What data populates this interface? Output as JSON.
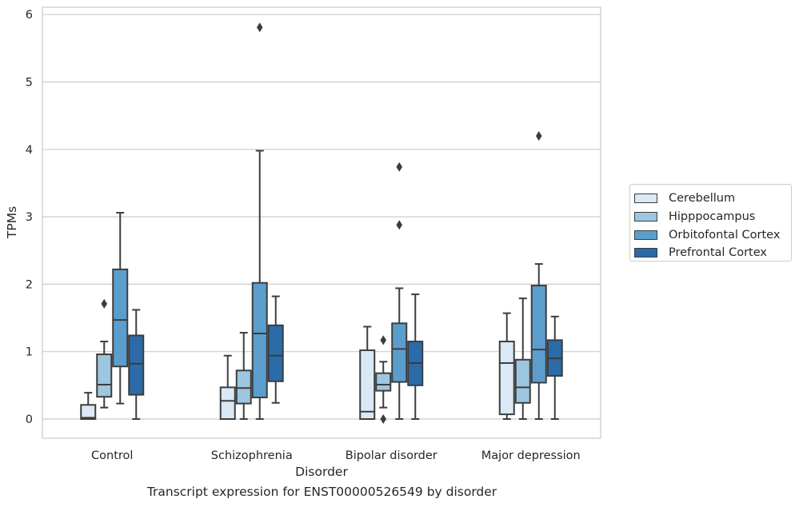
{
  "caption": "Transcript expression for ENST00000526549 by disorder",
  "chart_data": {
    "type": "box",
    "xlabel": "Disorder",
    "ylabel": "TPMs",
    "ylim": [
      -0.28,
      6.1
    ],
    "yticks": [
      0,
      1,
      2,
      3,
      4,
      5,
      6
    ],
    "grid": "horizontal",
    "legend_position": "right",
    "categories": [
      "Control",
      "Schizophrenia",
      "Bipolar disorder",
      "Major depression"
    ],
    "series": [
      {
        "name": "Cerebellum",
        "color": "#dbe8f5",
        "boxes": [
          {
            "whisker_low": 0.0,
            "q1": 0.0,
            "median": 0.02,
            "q3": 0.21,
            "whisker_high": 0.39,
            "outliers": []
          },
          {
            "whisker_low": 0.0,
            "q1": 0.0,
            "median": 0.27,
            "q3": 0.47,
            "whisker_high": 0.94,
            "outliers": []
          },
          {
            "whisker_low": 0.0,
            "q1": 0.0,
            "median": 0.11,
            "q3": 1.02,
            "whisker_high": 1.37,
            "outliers": []
          },
          {
            "whisker_low": 0.0,
            "q1": 0.07,
            "median": 0.83,
            "q3": 1.15,
            "whisker_high": 1.57,
            "outliers": []
          }
        ]
      },
      {
        "name": "Hipppocampus",
        "color": "#9dc6e0",
        "boxes": [
          {
            "whisker_low": 0.17,
            "q1": 0.33,
            "median": 0.51,
            "q3": 0.96,
            "whisker_high": 1.15,
            "outliers": [
              1.71
            ]
          },
          {
            "whisker_low": 0.0,
            "q1": 0.23,
            "median": 0.46,
            "q3": 0.72,
            "whisker_high": 1.28,
            "outliers": []
          },
          {
            "whisker_low": 0.17,
            "q1": 0.42,
            "median": 0.51,
            "q3": 0.68,
            "whisker_high": 0.85,
            "outliers": [
              1.17,
              0.0
            ]
          },
          {
            "whisker_low": 0.0,
            "q1": 0.24,
            "median": 0.47,
            "q3": 0.88,
            "whisker_high": 1.79,
            "outliers": []
          }
        ]
      },
      {
        "name": "Orbitofontal Cortex",
        "color": "#5b9ecd",
        "boxes": [
          {
            "whisker_low": 0.23,
            "q1": 0.78,
            "median": 1.47,
            "q3": 2.22,
            "whisker_high": 3.06,
            "outliers": []
          },
          {
            "whisker_low": 0.0,
            "q1": 0.32,
            "median": 1.27,
            "q3": 2.02,
            "whisker_high": 3.98,
            "outliers": [
              5.81
            ]
          },
          {
            "whisker_low": 0.0,
            "q1": 0.55,
            "median": 1.04,
            "q3": 1.42,
            "whisker_high": 1.94,
            "outliers": [
              2.88,
              3.74
            ]
          },
          {
            "whisker_low": 0.0,
            "q1": 0.54,
            "median": 1.03,
            "q3": 1.98,
            "whisker_high": 2.3,
            "outliers": [
              4.2
            ]
          }
        ]
      },
      {
        "name": "Prefrontal Cortex",
        "color": "#2b6ba8",
        "boxes": [
          {
            "whisker_low": 0.0,
            "q1": 0.36,
            "median": 0.82,
            "q3": 1.24,
            "whisker_high": 1.62,
            "outliers": []
          },
          {
            "whisker_low": 0.24,
            "q1": 0.56,
            "median": 0.94,
            "q3": 1.39,
            "whisker_high": 1.82,
            "outliers": []
          },
          {
            "whisker_low": 0.0,
            "q1": 0.5,
            "median": 0.83,
            "q3": 1.15,
            "whisker_high": 1.85,
            "outliers": []
          },
          {
            "whisker_low": 0.0,
            "q1": 0.64,
            "median": 0.9,
            "q3": 1.17,
            "whisker_high": 1.52,
            "outliers": []
          }
        ]
      }
    ]
  }
}
